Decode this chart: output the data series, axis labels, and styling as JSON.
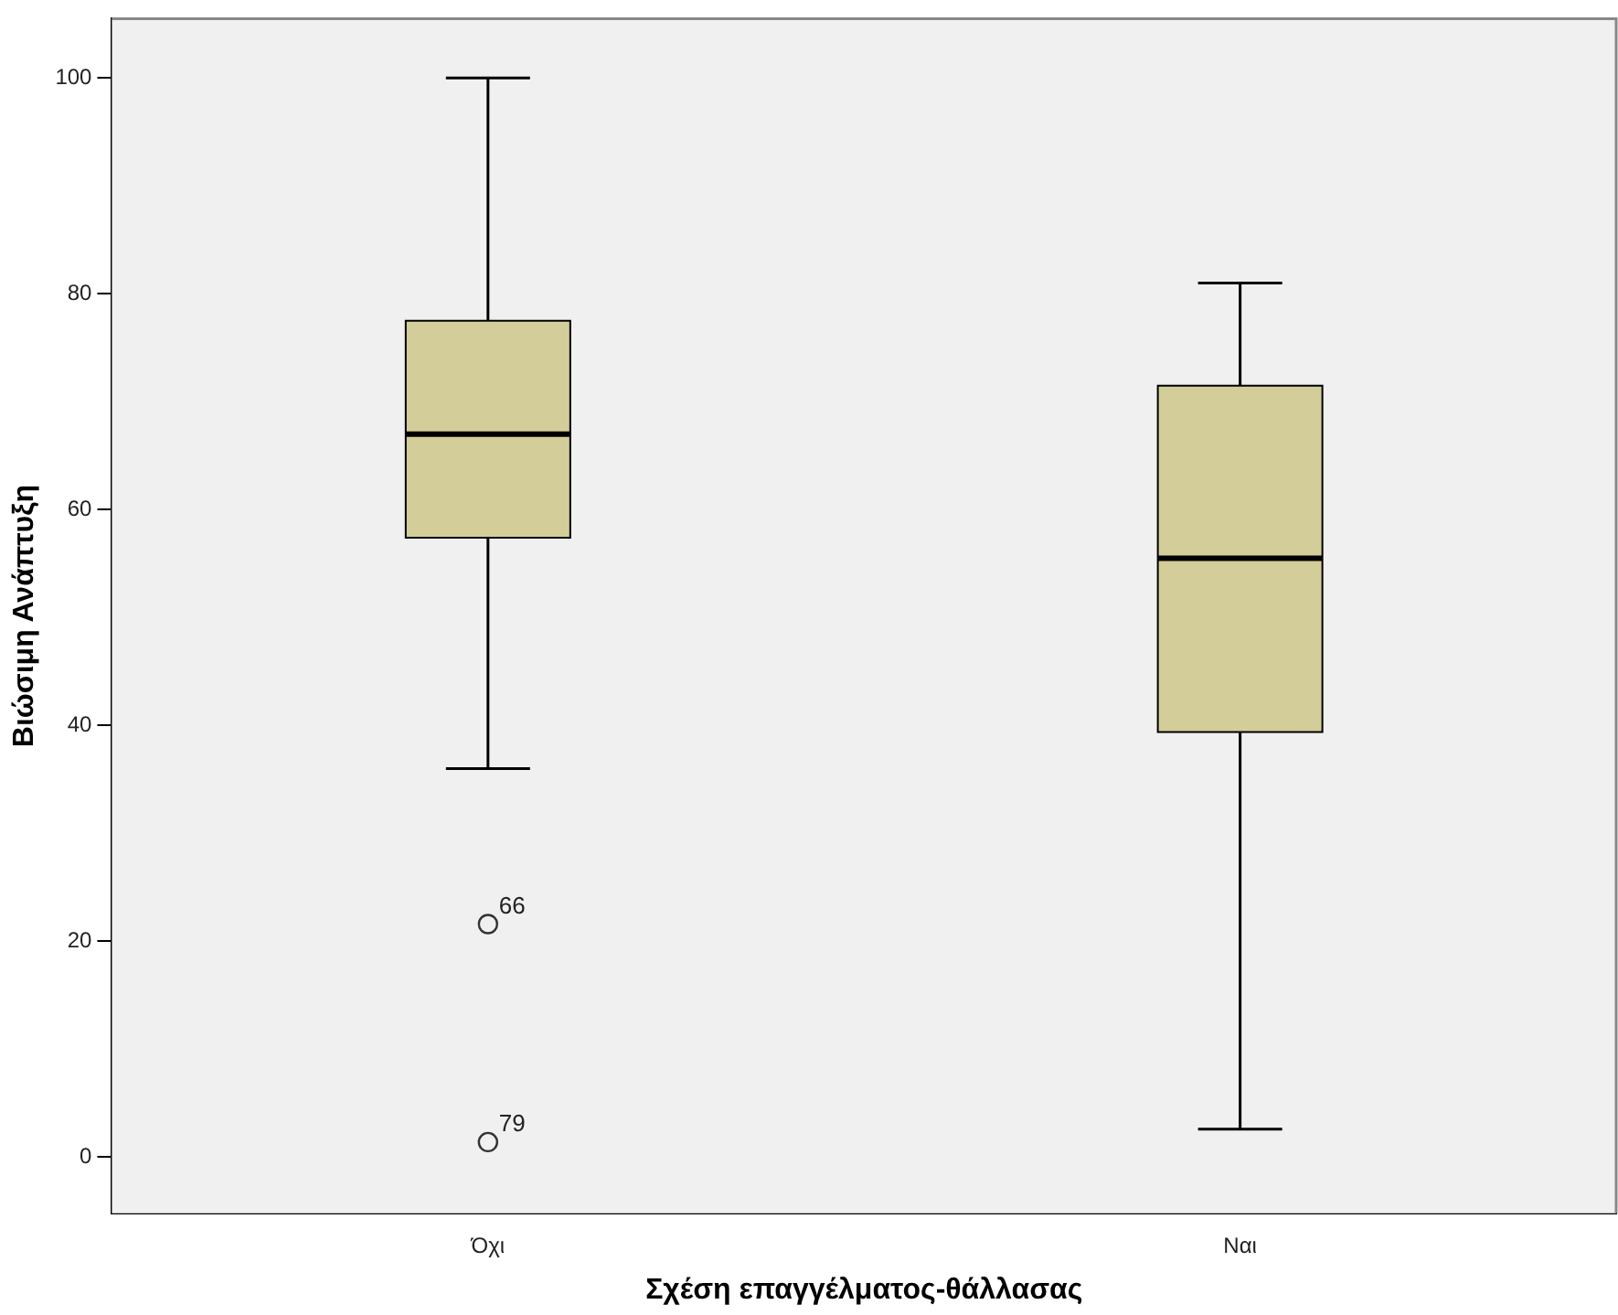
{
  "chart_data": {
    "type": "box",
    "xlabel": "Σχέση επαγγέλματος-θάλλασας",
    "ylabel": "Βιώσιμη Ανάπτυξη",
    "categories": [
      "Όχι",
      "Ναι"
    ],
    "color": "#d3ce99",
    "boxes": [
      {
        "low": 36.0,
        "q1": 57.4,
        "median": 67.0,
        "q3": 77.5,
        "high": 100,
        "outliers": [
          21.6,
          1.4
        ]
      },
      {
        "low": 2.6,
        "q1": 39.4,
        "median": 55.5,
        "q3": 71.5,
        "high": 81.0
      }
    ],
    "annotations": [
      "66",
      "79"
    ],
    "ylim": [
      -5.2,
      105.5
    ],
    "yticks": [
      0,
      20,
      40,
      60,
      80,
      100
    ],
    "grid": false,
    "legend": false
  }
}
